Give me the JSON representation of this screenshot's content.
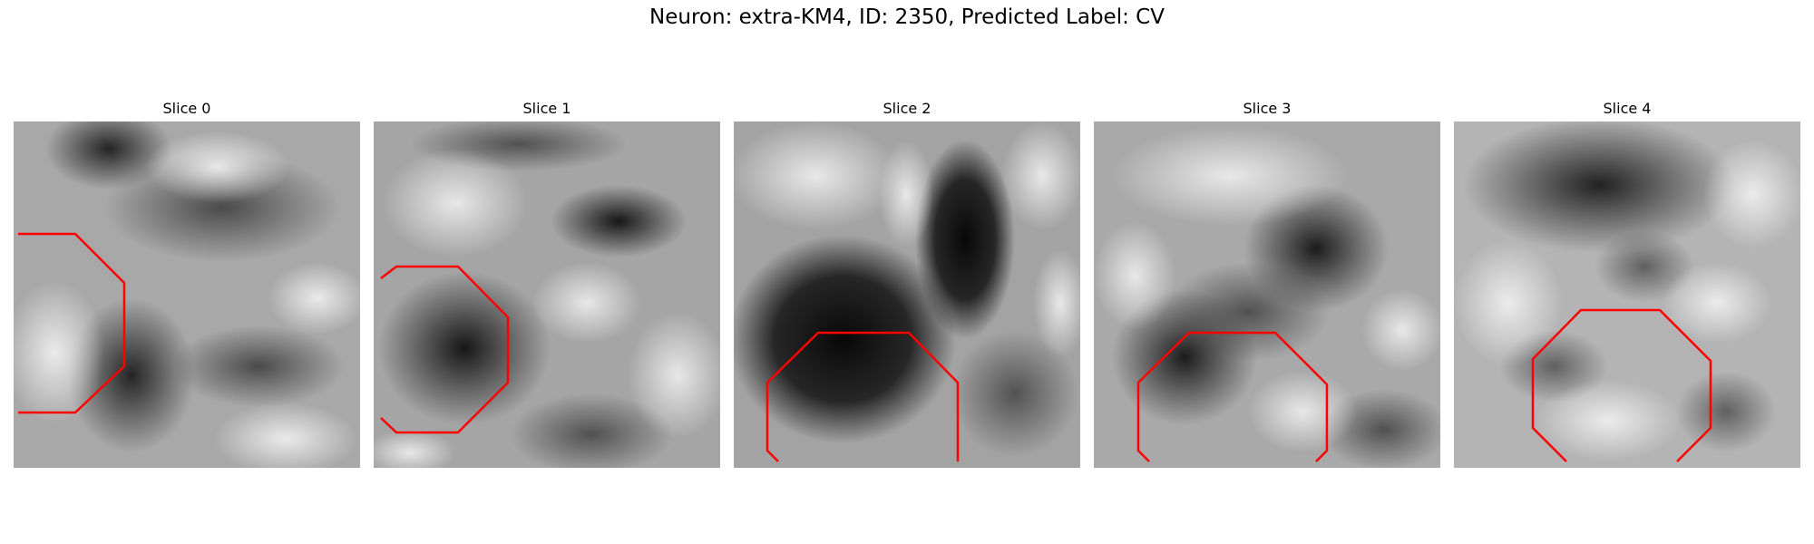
{
  "figure": {
    "title": "Neuron: extra-KM4, ID: 2350, Predicted Label: CV",
    "contour_color": "#ff0000",
    "colormap": "grayscale",
    "panels": [
      {
        "title": "Slice 0"
      },
      {
        "title": "Slice 1"
      },
      {
        "title": "Slice 2"
      },
      {
        "title": "Slice 3"
      },
      {
        "title": "Slice 4"
      }
    ]
  }
}
